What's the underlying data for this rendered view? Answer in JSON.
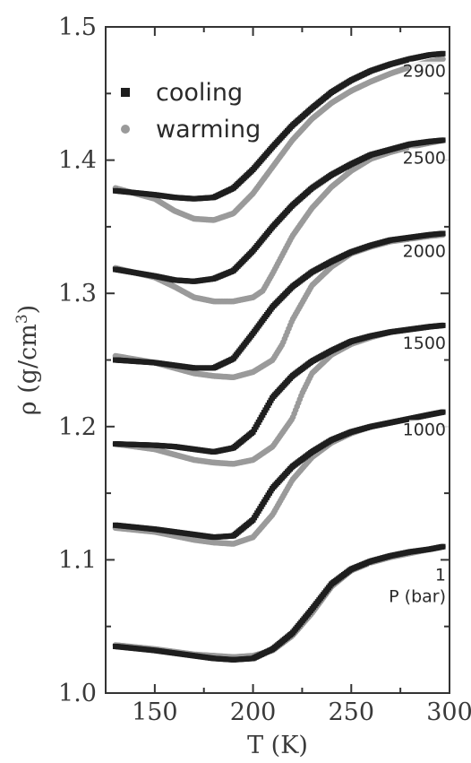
{
  "chart_data": {
    "type": "scatter",
    "title": "",
    "xlabel": "T (K)",
    "ylabel": "ρ (g/cm³)",
    "ylabel_base": "ρ (g/cm",
    "ylabel_sup": "3",
    "ylabel_close": ")",
    "xlim": [
      125,
      300
    ],
    "ylim": [
      1.0,
      1.5
    ],
    "xticks": [
      150,
      200,
      250,
      300
    ],
    "yticks": [
      1.0,
      1.1,
      1.2,
      1.3,
      1.4,
      1.5
    ],
    "xtick_labels": [
      "150",
      "200",
      "250",
      "300"
    ],
    "ytick_labels": [
      "1.0",
      "1.1",
      "1.2",
      "1.3",
      "1.4",
      "1.5"
    ],
    "legend": {
      "position": "top-left",
      "entries": [
        "cooling",
        "warming"
      ]
    },
    "colors": {
      "cooling": "#1e1e1e",
      "warming": "#9a9a9a"
    },
    "pressure_unit_label": "P (bar)",
    "series": [
      {
        "pressure": "2900",
        "curve": "cooling",
        "x": [
          130,
          150,
          160,
          170,
          180,
          190,
          200,
          210,
          220,
          230,
          240,
          250,
          260,
          270,
          280,
          290,
          297
        ],
        "y": [
          1.377,
          1.374,
          1.372,
          1.371,
          1.372,
          1.379,
          1.393,
          1.41,
          1.426,
          1.439,
          1.451,
          1.46,
          1.467,
          1.472,
          1.476,
          1.479,
          1.48
        ]
      },
      {
        "pressure": "2900",
        "curve": "warming",
        "x": [
          130,
          150,
          160,
          170,
          180,
          190,
          200,
          210,
          220,
          230,
          240,
          250,
          260,
          270,
          280,
          290,
          297
        ],
        "y": [
          1.379,
          1.371,
          1.362,
          1.356,
          1.355,
          1.36,
          1.375,
          1.395,
          1.415,
          1.431,
          1.443,
          1.452,
          1.459,
          1.465,
          1.47,
          1.474,
          1.476
        ]
      },
      {
        "pressure": "2500",
        "curve": "cooling",
        "x": [
          130,
          150,
          160,
          170,
          180,
          190,
          200,
          210,
          220,
          230,
          240,
          250,
          260,
          270,
          280,
          290,
          297
        ],
        "y": [
          1.318,
          1.313,
          1.31,
          1.309,
          1.311,
          1.317,
          1.332,
          1.35,
          1.366,
          1.379,
          1.389,
          1.397,
          1.404,
          1.408,
          1.412,
          1.414,
          1.415
        ]
      },
      {
        "pressure": "2500",
        "curve": "warming",
        "x": [
          130,
          150,
          160,
          170,
          180,
          190,
          200,
          205,
          210,
          220,
          230,
          240,
          250,
          260,
          270,
          280,
          290,
          297
        ],
        "y": [
          1.319,
          1.312,
          1.305,
          1.297,
          1.294,
          1.294,
          1.297,
          1.302,
          1.315,
          1.343,
          1.364,
          1.38,
          1.392,
          1.401,
          1.406,
          1.41,
          1.413,
          1.415
        ]
      },
      {
        "pressure": "2000",
        "curve": "cooling",
        "x": [
          130,
          150,
          160,
          170,
          180,
          190,
          200,
          210,
          220,
          230,
          240,
          250,
          260,
          270,
          280,
          290,
          297
        ],
        "y": [
          1.25,
          1.248,
          1.246,
          1.244,
          1.244,
          1.251,
          1.27,
          1.29,
          1.305,
          1.316,
          1.324,
          1.331,
          1.336,
          1.34,
          1.342,
          1.344,
          1.345
        ]
      },
      {
        "pressure": "2000",
        "curve": "warming",
        "x": [
          130,
          150,
          160,
          170,
          180,
          190,
          200,
          210,
          215,
          220,
          230,
          240,
          250,
          260,
          270,
          280,
          290,
          297
        ],
        "y": [
          1.253,
          1.248,
          1.244,
          1.24,
          1.238,
          1.237,
          1.241,
          1.25,
          1.262,
          1.28,
          1.306,
          1.32,
          1.33,
          1.335,
          1.339,
          1.341,
          1.343,
          1.344
        ]
      },
      {
        "pressure": "1500",
        "curve": "cooling",
        "x": [
          130,
          150,
          160,
          170,
          180,
          190,
          200,
          210,
          220,
          230,
          240,
          250,
          260,
          270,
          280,
          290,
          297
        ],
        "y": [
          1.187,
          1.186,
          1.185,
          1.183,
          1.181,
          1.184,
          1.196,
          1.222,
          1.238,
          1.249,
          1.257,
          1.264,
          1.268,
          1.271,
          1.273,
          1.275,
          1.276
        ]
      },
      {
        "pressure": "1500",
        "curve": "warming",
        "x": [
          130,
          150,
          160,
          170,
          180,
          190,
          200,
          210,
          220,
          225,
          230,
          240,
          250,
          260,
          270,
          280,
          290,
          297
        ],
        "y": [
          1.187,
          1.183,
          1.179,
          1.175,
          1.173,
          1.172,
          1.175,
          1.185,
          1.206,
          1.225,
          1.24,
          1.254,
          1.262,
          1.267,
          1.271,
          1.273,
          1.275,
          1.276
        ]
      },
      {
        "pressure": "1000",
        "curve": "cooling",
        "x": [
          130,
          150,
          160,
          170,
          180,
          190,
          200,
          210,
          220,
          230,
          240,
          250,
          260,
          270,
          280,
          290,
          297
        ],
        "y": [
          1.126,
          1.123,
          1.121,
          1.119,
          1.117,
          1.118,
          1.13,
          1.154,
          1.17,
          1.181,
          1.19,
          1.196,
          1.2,
          1.203,
          1.206,
          1.209,
          1.211
        ]
      },
      {
        "pressure": "1000",
        "curve": "warming",
        "x": [
          130,
          150,
          160,
          170,
          180,
          190,
          200,
          210,
          220,
          230,
          240,
          250,
          260,
          270,
          280,
          290,
          297
        ],
        "y": [
          1.124,
          1.121,
          1.118,
          1.115,
          1.113,
          1.112,
          1.117,
          1.134,
          1.16,
          1.177,
          1.188,
          1.195,
          1.2,
          1.203,
          1.206,
          1.209,
          1.211
        ]
      },
      {
        "pressure": "1",
        "curve": "cooling",
        "x": [
          130,
          150,
          160,
          170,
          180,
          190,
          200,
          210,
          220,
          230,
          240,
          250,
          260,
          270,
          280,
          290,
          297
        ],
        "y": [
          1.035,
          1.032,
          1.03,
          1.028,
          1.026,
          1.025,
          1.026,
          1.033,
          1.045,
          1.063,
          1.082,
          1.093,
          1.099,
          1.103,
          1.106,
          1.108,
          1.11
        ]
      },
      {
        "pressure": "1",
        "curve": "warming",
        "x": [
          130,
          150,
          160,
          170,
          180,
          190,
          200,
          210,
          220,
          230,
          240,
          250,
          260,
          270,
          280,
          290,
          297
        ],
        "y": [
          1.036,
          1.033,
          1.031,
          1.029,
          1.028,
          1.027,
          1.028,
          1.032,
          1.043,
          1.06,
          1.08,
          1.092,
          1.098,
          1.102,
          1.105,
          1.108,
          1.11
        ]
      }
    ]
  }
}
